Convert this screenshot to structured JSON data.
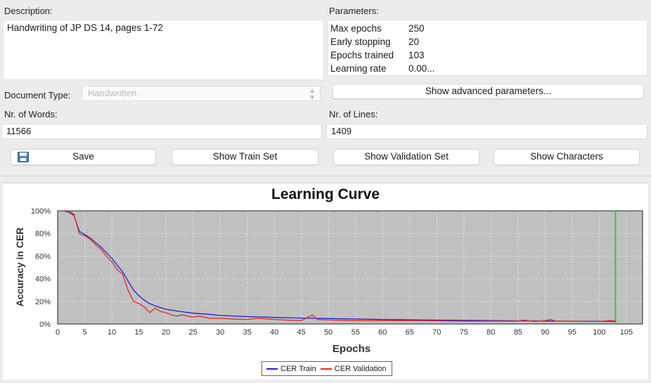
{
  "description": {
    "label": "Description:",
    "value": "Handwriting of JP DS 14, pages 1-72"
  },
  "parameters": {
    "label": "Parameters:",
    "rows": [
      {
        "key": "Max epochs",
        "value": "250"
      },
      {
        "key": "Early stopping",
        "value": "20"
      },
      {
        "key": "Epochs trained",
        "value": "103"
      },
      {
        "key": "Learning rate",
        "value": "0.00..."
      }
    ],
    "advanced_button": "Show advanced parameters..."
  },
  "document_type": {
    "label": "Document Type:",
    "value": "Handwritten"
  },
  "words": {
    "label": "Nr. of Words:",
    "value": "11566"
  },
  "lines": {
    "label": "Nr. of Lines:",
    "value": "1409"
  },
  "buttons": {
    "save": "Save",
    "train_set": "Show Train Set",
    "validation_set": "Show Validation Set",
    "characters": "Show Characters"
  },
  "chart_data": {
    "type": "line",
    "title": "Learning Curve",
    "xlabel": "Epochs",
    "ylabel": "Accuracy in CER",
    "xlim": [
      0,
      108
    ],
    "ylim": [
      0,
      100
    ],
    "x_ticks": [
      0,
      5,
      10,
      15,
      20,
      25,
      30,
      35,
      40,
      45,
      50,
      55,
      60,
      65,
      70,
      75,
      80,
      85,
      90,
      95,
      100,
      105
    ],
    "y_ticks": [
      "0%",
      "20%",
      "40%",
      "60%",
      "80%",
      "100%"
    ],
    "y_tick_values": [
      0,
      20,
      40,
      60,
      80,
      100
    ],
    "marker_line": {
      "x": 103,
      "color": "#2ecc2e"
    },
    "plot_background": "#c0c0c0",
    "grid": true,
    "legend_position": "bottom-center",
    "series": [
      {
        "name": "CER Train",
        "color": "#1f1fd6",
        "x": [
          1,
          2,
          3,
          4,
          5,
          6,
          7,
          8,
          9,
          10,
          11,
          12,
          13,
          14,
          15,
          16,
          17,
          18,
          19,
          20,
          22,
          25,
          28,
          30,
          35,
          40,
          45,
          50,
          55,
          60,
          65,
          70,
          75,
          80,
          85,
          90,
          95,
          100,
          103
        ],
        "y": [
          100,
          99,
          96,
          82,
          79,
          76,
          72,
          68,
          63,
          58,
          52,
          46,
          38,
          30,
          25,
          21,
          18,
          16,
          14.5,
          13,
          11.5,
          9.5,
          8.5,
          7.5,
          6.5,
          5.8,
          5.2,
          4.8,
          4.4,
          4.0,
          3.7,
          3.4,
          3.2,
          3.0,
          2.8,
          2.6,
          2.5,
          2.4,
          2.3
        ]
      },
      {
        "name": "CER Validation",
        "color": "#e8261e",
        "x": [
          1,
          2,
          3,
          4,
          5,
          6,
          7,
          8,
          9,
          10,
          11,
          12,
          13,
          14,
          15,
          16,
          17,
          18,
          19,
          20,
          21,
          22,
          23,
          24,
          25,
          26,
          28,
          30,
          32,
          35,
          37,
          40,
          42,
          45,
          47,
          48,
          50,
          55,
          60,
          65,
          70,
          75,
          80,
          85,
          86,
          88,
          90,
          91,
          92,
          95,
          100,
          102,
          103
        ],
        "y": [
          100,
          100,
          97,
          80,
          78,
          75,
          70,
          66,
          60,
          55,
          48,
          44,
          30,
          20,
          18,
          15,
          10,
          14,
          11,
          10,
          8,
          7,
          8,
          7,
          6,
          7,
          5,
          5,
          4.5,
          4,
          5,
          4,
          3.5,
          3,
          8,
          4,
          3.5,
          3,
          3,
          3,
          2.8,
          2.5,
          2.5,
          2.5,
          3.5,
          2.3,
          3,
          4,
          2.5,
          2.5,
          2.2,
          3,
          2.5
        ]
      }
    ]
  }
}
